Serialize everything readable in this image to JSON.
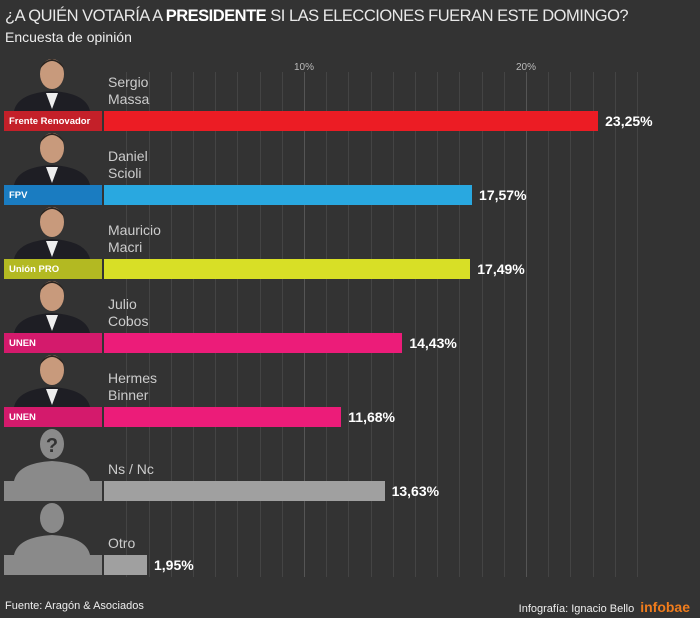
{
  "header": {
    "title_pre": "¿A QUIÉN VOTARÍA A ",
    "title_bold": "PRESIDENTE",
    "title_post": " SI LAS ELECCIONES FUERAN ESTE DOMINGO?",
    "subtitle": "Encuesta de opinión"
  },
  "chart_data": {
    "type": "bar",
    "orientation": "horizontal",
    "title": "¿A QUIÉN VOTARÍA A PRESIDENTE SI LAS ELECCIONES FUERAN ESTE DOMINGO?",
    "subtitle": "Encuesta de opinión",
    "xticks": [
      "10%",
      "20%"
    ],
    "xlim": [
      0,
      25
    ],
    "grid": true,
    "categories": [
      {
        "name": "Sergio\nMassa",
        "party": "Frente Renovador",
        "value": 23.25,
        "label": "23,25%",
        "color": "#ec1c24",
        "party_color": "#c42029",
        "photo": "person"
      },
      {
        "name": "Daniel\nScioli",
        "party": "FPV",
        "value": 17.57,
        "label": "17,57%",
        "color": "#29a8e0",
        "party_color": "#1a7cc1",
        "photo": "person"
      },
      {
        "name": "Mauricio\nMacri",
        "party": "Unión PRO",
        "value": 17.49,
        "label": "17,49%",
        "color": "#d8df26",
        "party_color": "#b3b922",
        "photo": "person"
      },
      {
        "name": "Julio\nCobos",
        "party": "UNEN",
        "value": 14.43,
        "label": "14,43%",
        "color": "#ec1c79",
        "party_color": "#d41a6c",
        "photo": "person"
      },
      {
        "name": "Hermes\nBinner",
        "party": "UNEN",
        "value": 11.68,
        "label": "11,68%",
        "color": "#ec1c79",
        "party_color": "#d41a6c",
        "photo": "person"
      },
      {
        "name": "Ns / Nc",
        "party": "",
        "value": 13.63,
        "label": "13,63%",
        "color": "#a0a0a0",
        "party_color": "#8a8a8a",
        "photo": "unknown-silhouette"
      },
      {
        "name": "Otro",
        "party": "",
        "value": 1.95,
        "label": "1,95%",
        "color": "#a0a0a0",
        "party_color": "#8a8a8a",
        "photo": "silhouette"
      }
    ]
  },
  "footer": {
    "source": "Fuente: Aragón & Asociados",
    "credit": "Infografía:  Ignacio Bello",
    "logo": "infobae"
  }
}
